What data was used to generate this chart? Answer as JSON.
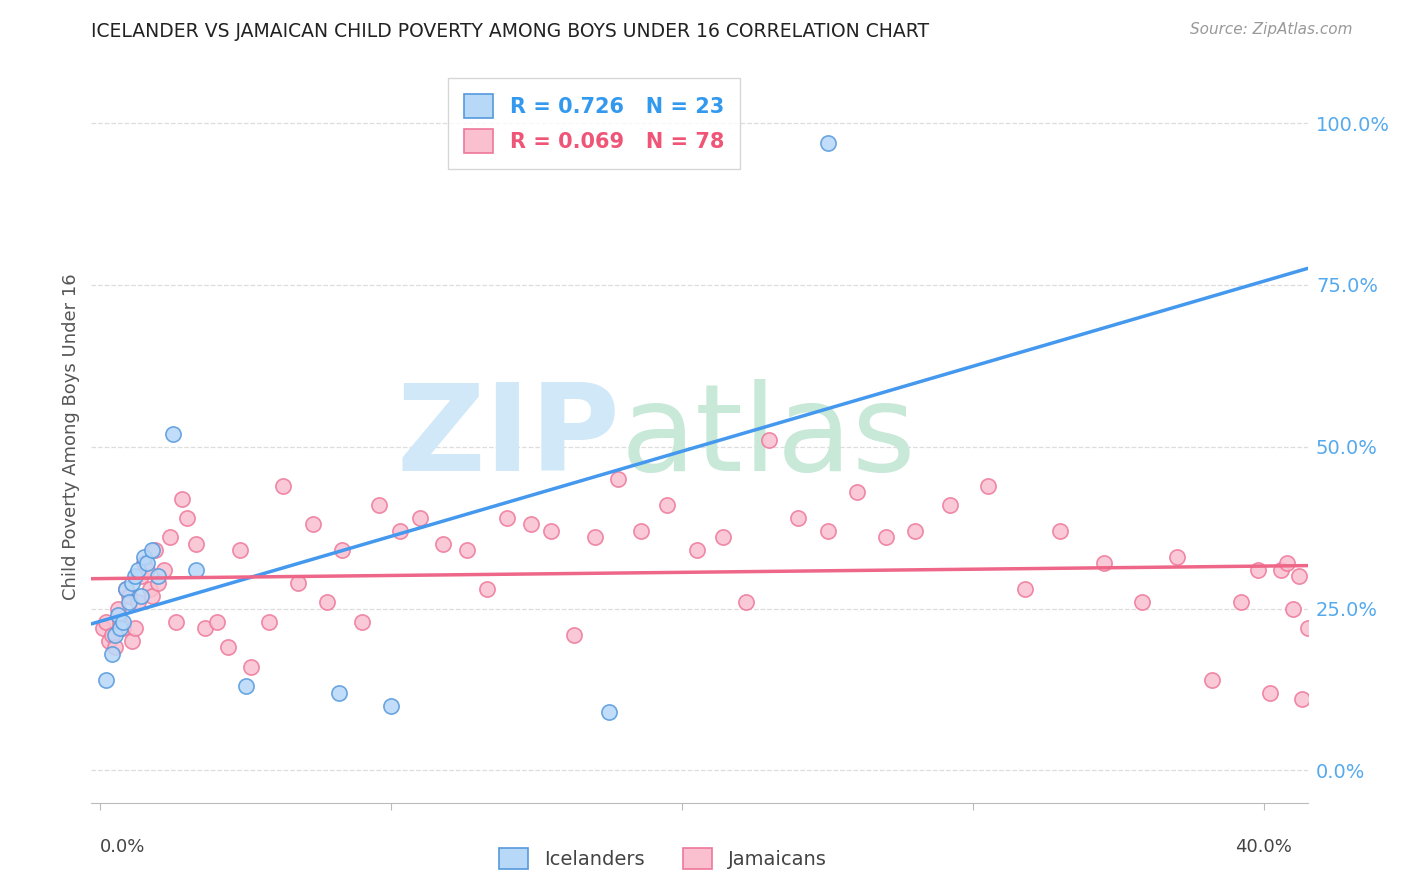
{
  "title": "ICELANDER VS JAMAICAN CHILD POVERTY AMONG BOYS UNDER 16 CORRELATION CHART",
  "source": "Source: ZipAtlas.com",
  "ylabel": "Child Poverty Among Boys Under 16",
  "xlim": [
    -0.003,
    0.415
  ],
  "ylim": [
    -0.05,
    1.08
  ],
  "yticks_right": [
    0.0,
    0.25,
    0.5,
    0.75,
    1.0
  ],
  "ytick_labels_right": [
    "0.0%",
    "25.0%",
    "50.0%",
    "75.0%",
    "100.0%"
  ],
  "xtick_left_label": "0.0%",
  "xtick_right_label": "40.0%",
  "icelanders_R": 0.726,
  "icelanders_N": 23,
  "jamaicans_R": 0.069,
  "jamaicans_N": 78,
  "icelander_fill": "#B8D8F8",
  "jamaican_fill": "#FAC0D0",
  "icelander_edge": "#5599DD",
  "jamaican_edge": "#EE7799",
  "icelander_line": "#4499EE",
  "jamaican_line": "#EE6688",
  "legend_blue": "#3399EE",
  "legend_pink": "#EE5577",
  "icelanders_x": [
    0.002,
    0.004,
    0.005,
    0.006,
    0.007,
    0.008,
    0.009,
    0.01,
    0.011,
    0.012,
    0.013,
    0.014,
    0.015,
    0.016,
    0.018,
    0.02,
    0.025,
    0.033,
    0.05,
    0.082,
    0.1,
    0.175,
    0.25
  ],
  "icelanders_y": [
    0.14,
    0.18,
    0.21,
    0.24,
    0.22,
    0.23,
    0.28,
    0.26,
    0.29,
    0.3,
    0.31,
    0.27,
    0.33,
    0.32,
    0.34,
    0.3,
    0.52,
    0.31,
    0.13,
    0.12,
    0.1,
    0.09,
    0.97
  ],
  "jamaicans_x": [
    0.001,
    0.002,
    0.003,
    0.004,
    0.005,
    0.006,
    0.007,
    0.008,
    0.009,
    0.01,
    0.011,
    0.012,
    0.013,
    0.014,
    0.015,
    0.016,
    0.017,
    0.018,
    0.019,
    0.02,
    0.022,
    0.024,
    0.026,
    0.028,
    0.03,
    0.033,
    0.036,
    0.04,
    0.044,
    0.048,
    0.052,
    0.058,
    0.063,
    0.068,
    0.073,
    0.078,
    0.083,
    0.09,
    0.096,
    0.103,
    0.11,
    0.118,
    0.126,
    0.133,
    0.14,
    0.148,
    0.155,
    0.163,
    0.17,
    0.178,
    0.186,
    0.195,
    0.205,
    0.214,
    0.222,
    0.23,
    0.24,
    0.25,
    0.26,
    0.27,
    0.28,
    0.292,
    0.305,
    0.318,
    0.33,
    0.345,
    0.358,
    0.37,
    0.382,
    0.392,
    0.398,
    0.402,
    0.406,
    0.408,
    0.41,
    0.412,
    0.413,
    0.415
  ],
  "jamaicans_y": [
    0.22,
    0.23,
    0.2,
    0.21,
    0.19,
    0.25,
    0.23,
    0.22,
    0.28,
    0.27,
    0.2,
    0.22,
    0.26,
    0.3,
    0.32,
    0.31,
    0.28,
    0.27,
    0.34,
    0.29,
    0.31,
    0.36,
    0.23,
    0.42,
    0.39,
    0.35,
    0.22,
    0.23,
    0.19,
    0.34,
    0.16,
    0.23,
    0.44,
    0.29,
    0.38,
    0.26,
    0.34,
    0.23,
    0.41,
    0.37,
    0.39,
    0.35,
    0.34,
    0.28,
    0.39,
    0.38,
    0.37,
    0.21,
    0.36,
    0.45,
    0.37,
    0.41,
    0.34,
    0.36,
    0.26,
    0.51,
    0.39,
    0.37,
    0.43,
    0.36,
    0.37,
    0.41,
    0.44,
    0.28,
    0.37,
    0.32,
    0.26,
    0.33,
    0.14,
    0.26,
    0.31,
    0.12,
    0.31,
    0.32,
    0.25,
    0.3,
    0.11,
    0.22
  ],
  "background_color": "#FFFFFF",
  "grid_color": "#DDDDDD",
  "spine_color": "#BBBBBB"
}
